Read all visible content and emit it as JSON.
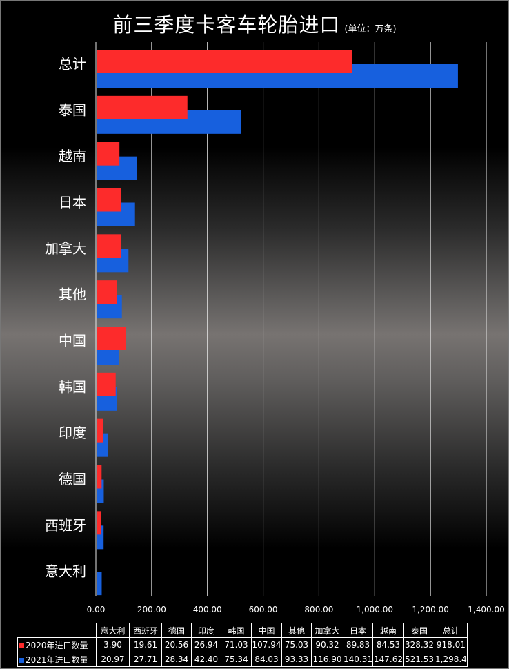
{
  "title": "前三季度卡客车轮胎进口",
  "subtitle": "(单位：万条)",
  "chart_data": {
    "type": "bar",
    "orientation": "horizontal",
    "title": "前三季度卡客车轮胎进口",
    "subtitle": "(单位：万条)",
    "categories": [
      "意大利",
      "西班牙",
      "德国",
      "印度",
      "韩国",
      "中国",
      "其他",
      "加拿大",
      "日本",
      "越南",
      "泰国",
      "总计"
    ],
    "series": [
      {
        "name": "2020年进口数量",
        "color": "#fd2b2b",
        "values": [
          3.9,
          19.61,
          20.56,
          26.94,
          71.03,
          107.94,
          75.03,
          90.32,
          89.83,
          84.53,
          328.32,
          918.01
        ],
        "display": [
          "3.90",
          "19.61",
          "20.56",
          "26.94",
          "71.03",
          "107.94",
          "75.03",
          "90.32",
          "89.83",
          "84.53",
          "328.32",
          "918.01"
        ]
      },
      {
        "name": "2021年进口数量",
        "color": "#1760de",
        "values": [
          20.97,
          27.71,
          28.34,
          42.4,
          75.34,
          84.03,
          93.33,
          116.9,
          140.31,
          147.62,
          521.53,
          1298.4
        ],
        "display": [
          "20.97",
          "27.71",
          "28.34",
          "42.40",
          "75.34",
          "84.03",
          "93.33",
          "116.90",
          "140.31",
          "147.62",
          "521.53",
          "1,298.4"
        ]
      }
    ],
    "xlim": [
      0,
      1400
    ],
    "xticks": [
      "0.00",
      "200.00",
      "400.00",
      "600.00",
      "800.00",
      "1,000.00",
      "1,200.00",
      "1,400.00"
    ],
    "grid": true,
    "data_table": true
  }
}
